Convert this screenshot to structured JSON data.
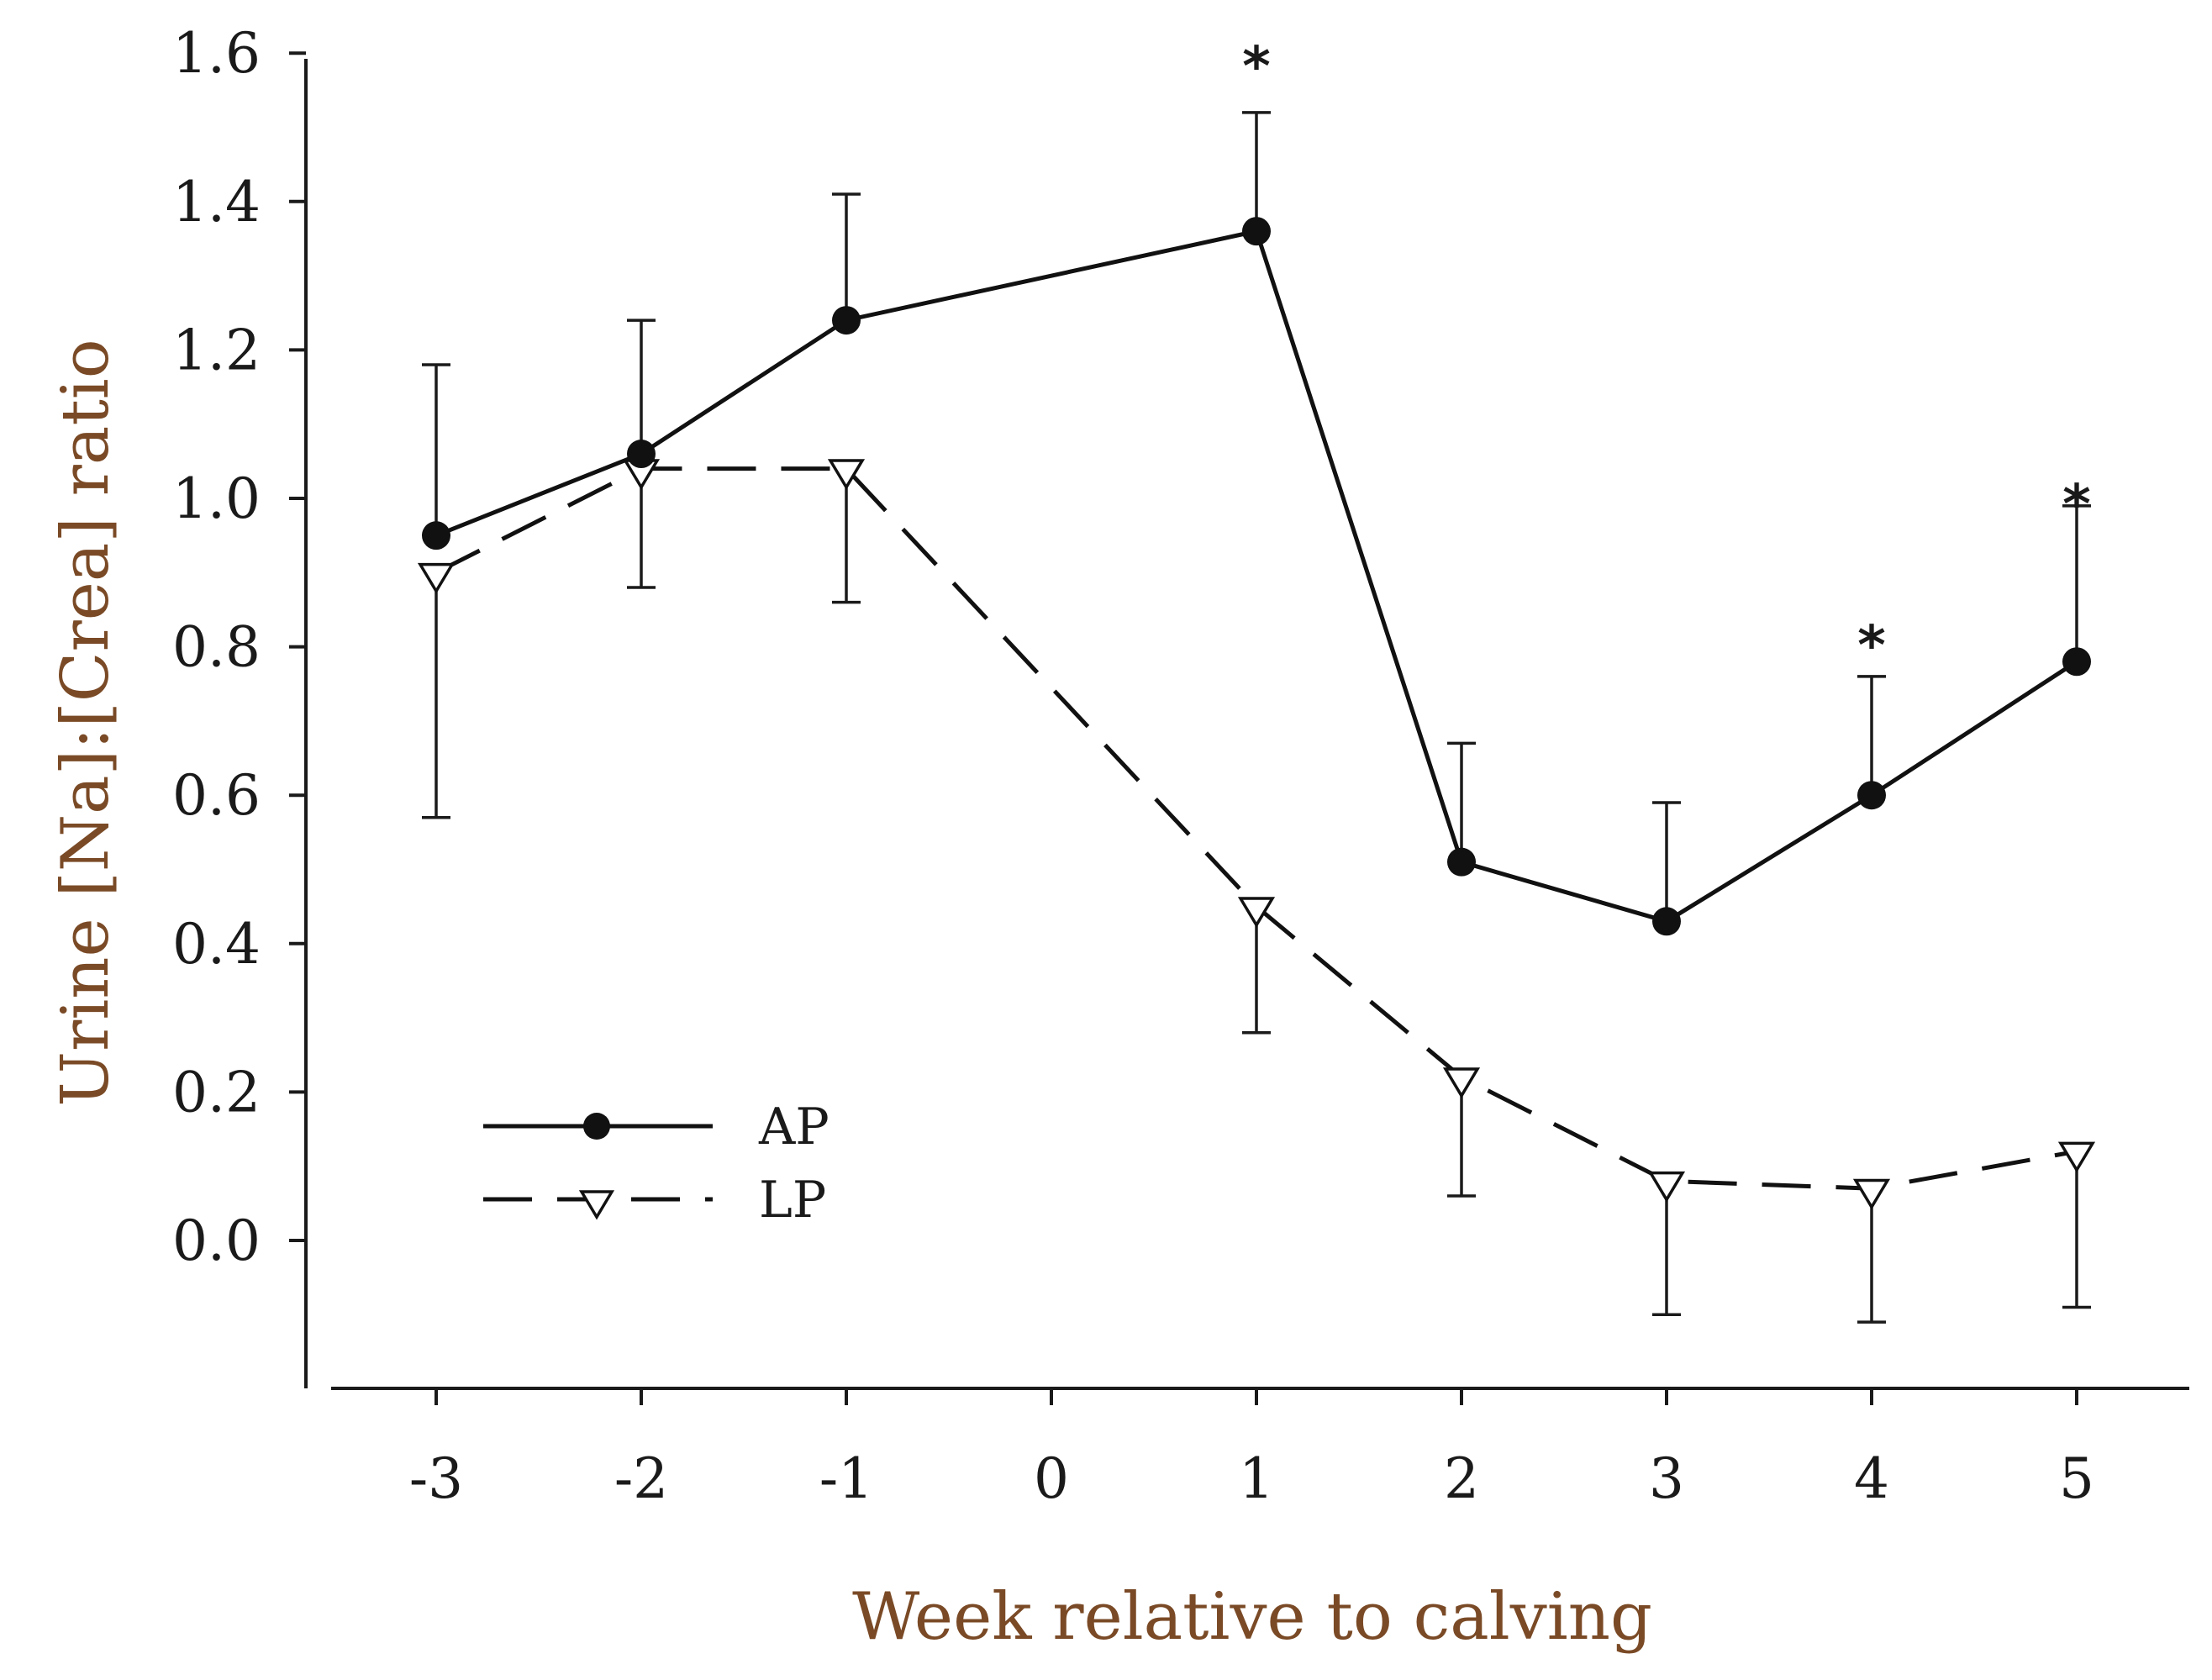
{
  "chart_data": {
    "type": "line",
    "title": "",
    "xlabel": "Week relative to calving",
    "ylabel": "Urine [Na]:[Crea] ratio",
    "x_ticks": [
      "-3",
      "-2",
      "-1",
      "0",
      "1",
      "2",
      "3",
      "4",
      "5"
    ],
    "y_ticks": [
      "0.0",
      "0.2",
      "0.4",
      "0.6",
      "0.8",
      "1.0",
      "1.2",
      "1.4",
      "1.6"
    ],
    "xlim": [
      -3.6,
      5.5
    ],
    "ylim": [
      -0.2,
      1.6
    ],
    "grid": false,
    "legend": "lower-left",
    "colors": {
      "line": "#111111",
      "axis_title": "#7a4a26",
      "background": "#ffffff"
    },
    "series": [
      {
        "name": "AP",
        "marker": "filled-circle",
        "line_style": "solid",
        "x": [
          -3,
          -2,
          -1,
          1,
          2,
          3,
          4,
          5
        ],
        "values": [
          0.95,
          1.06,
          1.24,
          1.36,
          0.51,
          0.43,
          0.6,
          0.78
        ],
        "error_upper": [
          0.23,
          0.18,
          0.17,
          0.16,
          0.16,
          0.16,
          0.16,
          0.21
        ]
      },
      {
        "name": "LP",
        "marker": "open-triangle-down",
        "line_style": "dashed",
        "x": [
          -3,
          -2,
          -1,
          1,
          2,
          3,
          4,
          5
        ],
        "values": [
          0.9,
          1.04,
          1.04,
          0.45,
          0.22,
          0.08,
          0.07,
          0.12
        ],
        "error_lower": [
          0.33,
          0.16,
          0.18,
          0.17,
          0.16,
          0.18,
          0.18,
          0.21
        ]
      }
    ],
    "annotations": [
      {
        "text": "*",
        "x": 1,
        "y": 1.6
      },
      {
        "text": "*",
        "x": 4,
        "y": 0.82
      },
      {
        "text": "*",
        "x": 5,
        "y": 1.01
      }
    ]
  }
}
